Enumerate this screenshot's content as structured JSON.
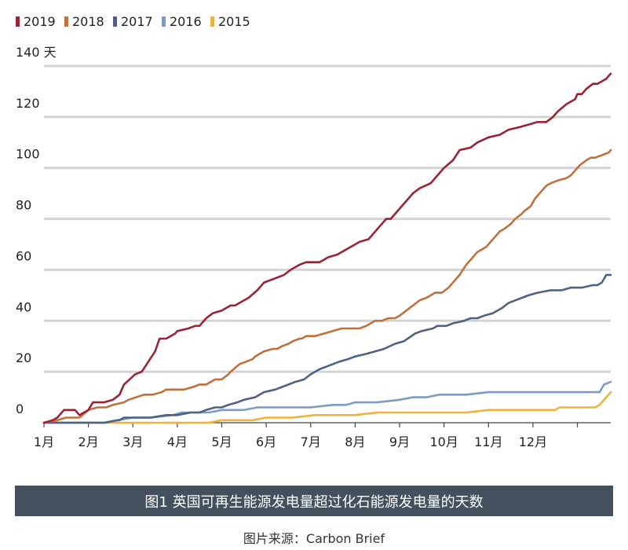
{
  "caption": "图1 英国可再生能源发电量超过化石能源发电量的天数",
  "source": "图片来源：Carbon Brief",
  "chart_data": {
    "type": "line",
    "y_unit": "天",
    "ylim": [
      0,
      140
    ],
    "yticks": [
      0,
      20,
      40,
      60,
      80,
      100,
      120,
      140
    ],
    "xlim": [
      0,
      12.75
    ],
    "months": [
      "1月",
      "2月",
      "3月",
      "4月",
      "5月",
      "6月",
      "7月",
      "8月",
      "9月",
      "10月",
      "11月",
      "12月"
    ],
    "grid": true,
    "legend_position": "top-left",
    "series": [
      {
        "name": "2019",
        "color": "#9b2335",
        "x": [
          0,
          0.2,
          0.3,
          0.45,
          0.7,
          0.8,
          1.0,
          1.1,
          1.35,
          1.55,
          1.7,
          1.8,
          2.05,
          2.2,
          2.35,
          2.5,
          2.6,
          2.75,
          2.95,
          3.0,
          3.25,
          3.4,
          3.5,
          3.65,
          3.8,
          4.0,
          4.2,
          4.3,
          4.5,
          4.6,
          4.8,
          4.95,
          5.25,
          5.4,
          5.55,
          5.75,
          5.9,
          6.2,
          6.4,
          6.6,
          6.8,
          7.1,
          7.3,
          7.55,
          7.7,
          7.8,
          8.0,
          8.2,
          8.3,
          8.45,
          8.7,
          8.85,
          9.0,
          9.2,
          9.35,
          9.6,
          9.75,
          10.0,
          10.25,
          10.45,
          10.7,
          10.9,
          11.1,
          11.3,
          11.45,
          11.55,
          11.75,
          11.85,
          11.95,
          12.0,
          12.1,
          12.2,
          12.35,
          12.45,
          12.55,
          12.65,
          12.75
        ],
        "y": [
          0,
          1,
          2,
          5,
          5,
          3,
          5,
          8,
          8,
          9,
          11,
          15,
          19,
          20,
          24,
          28,
          33,
          33,
          35,
          36,
          37,
          38,
          38,
          41,
          43,
          44,
          46,
          46,
          48,
          49,
          52,
          55,
          57,
          58,
          60,
          62,
          63,
          63,
          65,
          66,
          68,
          71,
          72,
          77,
          80,
          80,
          84,
          88,
          90,
          92,
          94,
          97,
          100,
          103,
          107,
          108,
          110,
          112,
          113,
          115,
          116,
          117,
          118,
          118,
          120,
          122,
          125,
          126,
          127,
          129,
          129,
          131,
          133,
          133,
          134,
          135,
          137
        ]
      },
      {
        "name": "2018",
        "color": "#c1703b",
        "x": [
          0,
          0.3,
          0.5,
          0.8,
          1.0,
          1.2,
          1.4,
          1.55,
          1.8,
          1.9,
          2.25,
          2.45,
          2.65,
          2.75,
          3.0,
          3.15,
          3.35,
          3.5,
          3.65,
          3.75,
          3.85,
          4.0,
          4.15,
          4.2,
          4.4,
          4.55,
          4.7,
          4.75,
          4.85,
          4.95,
          5.15,
          5.25,
          5.35,
          5.5,
          5.6,
          5.75,
          5.8,
          5.9,
          6.1,
          6.3,
          6.5,
          6.7,
          6.85,
          7.1,
          7.25,
          7.45,
          7.6,
          7.75,
          7.9,
          8.0,
          8.15,
          8.3,
          8.45,
          8.6,
          8.8,
          8.95,
          9.1,
          9.2,
          9.35,
          9.5,
          9.6,
          9.75,
          9.95,
          10.1,
          10.25,
          10.35,
          10.5,
          10.6,
          10.75,
          10.8,
          10.95,
          11.05,
          11.2,
          11.3,
          11.4,
          11.55,
          11.75,
          11.85,
          11.95,
          12.05,
          12.2,
          12.3,
          12.4,
          12.55,
          12.7,
          12.75
        ],
        "y": [
          0,
          1,
          2,
          2,
          5,
          6,
          6,
          7,
          8,
          9,
          11,
          11,
          12,
          13,
          13,
          13,
          14,
          15,
          15,
          16,
          17,
          17,
          19,
          20,
          23,
          24,
          25,
          26,
          27,
          28,
          29,
          29,
          30,
          31,
          32,
          33,
          33,
          34,
          34,
          35,
          36,
          37,
          37,
          37,
          38,
          40,
          40,
          41,
          41,
          42,
          44,
          46,
          48,
          49,
          51,
          51,
          53,
          55,
          58,
          62,
          64,
          67,
          69,
          72,
          75,
          76,
          78,
          80,
          82,
          83,
          85,
          88,
          91,
          93,
          94,
          95,
          96,
          97,
          99,
          101,
          103,
          104,
          104,
          105,
          106,
          107
        ]
      },
      {
        "name": "2017",
        "color": "#4f6184",
        "x": [
          0,
          1.0,
          1.35,
          1.65,
          1.7,
          1.8,
          2.4,
          2.75,
          2.9,
          3.0,
          3.3,
          3.5,
          3.65,
          3.85,
          4.0,
          4.15,
          4.35,
          4.5,
          4.75,
          4.95,
          5.2,
          5.35,
          5.5,
          5.65,
          5.85,
          6.0,
          6.2,
          6.35,
          6.5,
          6.65,
          6.85,
          7.0,
          7.25,
          7.45,
          7.65,
          7.9,
          8.1,
          8.35,
          8.5,
          8.75,
          8.85,
          9.05,
          9.2,
          9.45,
          9.6,
          9.75,
          9.9,
          10.1,
          10.3,
          10.45,
          10.6,
          10.75,
          10.9,
          11.1,
          11.4,
          11.65,
          11.85,
          12.1,
          12.35,
          12.45,
          12.55,
          12.65,
          12.75
        ],
        "y": [
          0,
          0,
          0,
          1,
          1,
          2,
          2,
          3,
          3,
          3,
          4,
          4,
          5,
          6,
          6,
          7,
          8,
          9,
          10,
          12,
          13,
          14,
          15,
          16,
          17,
          19,
          21,
          22,
          23,
          24,
          25,
          26,
          27,
          28,
          29,
          31,
          32,
          35,
          36,
          37,
          38,
          38,
          39,
          40,
          41,
          41,
          42,
          43,
          45,
          47,
          48,
          49,
          50,
          51,
          52,
          52,
          53,
          53,
          54,
          54,
          55,
          58,
          58
        ]
      },
      {
        "name": "2016",
        "color": "#7a9cc6",
        "x": [
          0,
          1.4,
          1.65,
          2.0,
          2.4,
          2.9,
          3.1,
          3.4,
          3.7,
          4.0,
          4.3,
          4.5,
          4.8,
          5.0,
          5.5,
          6.0,
          6.5,
          6.8,
          7.0,
          7.5,
          8.0,
          8.3,
          8.6,
          8.9,
          9.2,
          9.5,
          10.0,
          10.5,
          11.0,
          11.5,
          12.0,
          12.5,
          12.6,
          12.75
        ],
        "y": [
          0,
          0,
          1,
          2,
          2,
          3,
          4,
          4,
          4,
          5,
          5,
          5,
          6,
          6,
          6,
          6,
          7,
          7,
          8,
          8,
          9,
          10,
          10,
          11,
          11,
          11,
          12,
          12,
          12,
          12,
          12,
          12,
          15,
          16
        ]
      },
      {
        "name": "2015",
        "color": "#f1b23b",
        "x": [
          0,
          2.5,
          3.0,
          3.4,
          3.7,
          4.0,
          4.3,
          4.7,
          5.0,
          5.3,
          5.6,
          6.1,
          6.5,
          7.0,
          7.5,
          8.0,
          8.5,
          9.0,
          9.5,
          10.0,
          10.5,
          11.0,
          11.5,
          11.6,
          11.7,
          12.0,
          12.4,
          12.5,
          12.55,
          12.65,
          12.75
        ],
        "y": [
          0,
          0,
          0,
          0,
          0,
          1,
          1,
          1,
          2,
          2,
          2,
          3,
          3,
          3,
          4,
          4,
          4,
          4,
          4,
          5,
          5,
          5,
          5,
          6,
          6,
          6,
          6,
          7,
          8,
          10,
          12
        ]
      }
    ]
  }
}
